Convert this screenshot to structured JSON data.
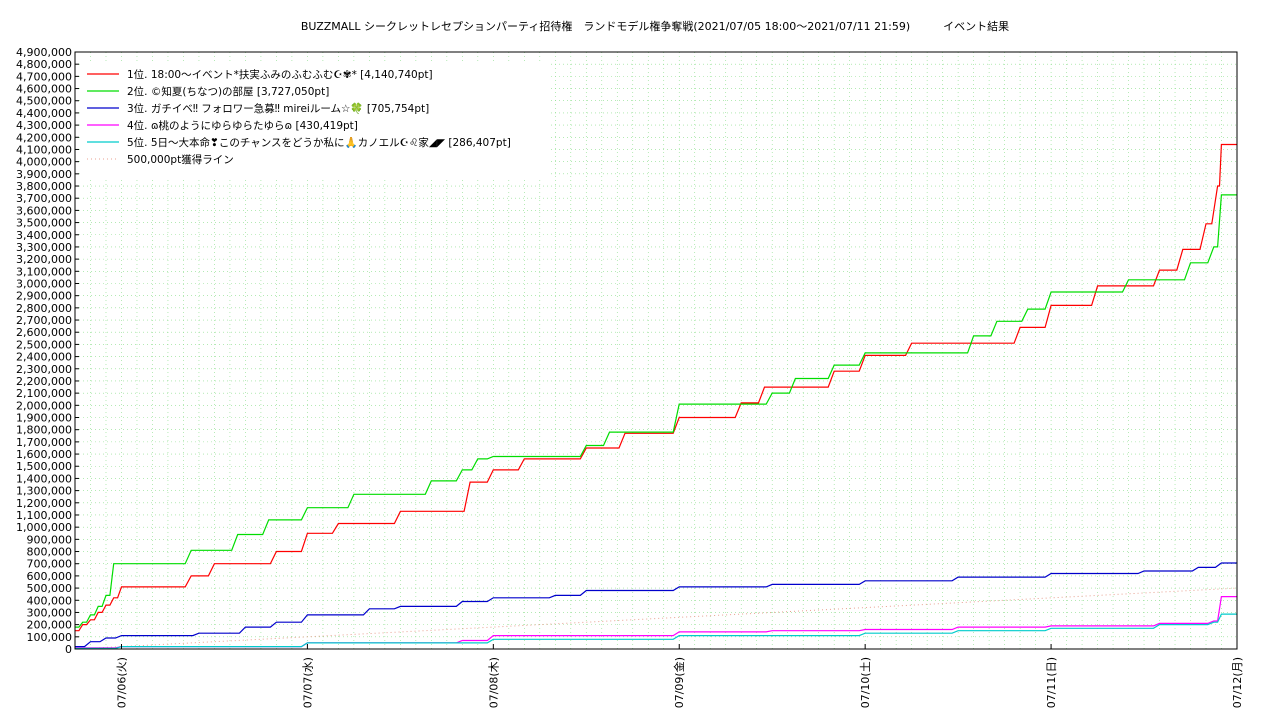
{
  "chart_data": {
    "type": "line",
    "title": "BUZZMALL シークレットレセプションパーティ招待権　ランドモデル権争奪戦(2021/07/05 18:00〜2021/07/11 21:59)　　　イベント結果",
    "xlabel": "",
    "ylabel": "",
    "x_range": [
      "2021/07/05 18:00",
      "2021/07/12 00:00"
    ],
    "ylim": [
      0,
      4900000
    ],
    "y_tick_step": 100000,
    "x_ticks": [
      {
        "label": "07/06(火)",
        "x": "2021/07/06 00:00"
      },
      {
        "label": "07/07(水)",
        "x": "2021/07/07 00:00"
      },
      {
        "label": "07/08(木)",
        "x": "2021/07/08 00:00"
      },
      {
        "label": "07/09(金)",
        "x": "2021/07/09 00:00"
      },
      {
        "label": "07/10(土)",
        "x": "2021/07/10 00:00"
      },
      {
        "label": "07/11(日)",
        "x": "2021/07/11 00:00"
      },
      {
        "label": "07/12(月)",
        "x": "2021/07/12 00:00"
      }
    ],
    "grid": true,
    "legend_position": "top-left",
    "series": [
      {
        "name": "1位. 18:00〜イベント*扶実ふみのふむふむ☪✾* [4,140,740pt]",
        "color": "#ff0000",
        "x": [
          "2021/07/05 18:00",
          "2021/07/05 19:00",
          "2021/07/05 20:00",
          "2021/07/05 21:00",
          "2021/07/05 22:00",
          "2021/07/05 23:00",
          "2021/07/06 00:00",
          "2021/07/06 09:00",
          "2021/07/06 12:00",
          "2021/07/06 20:00",
          "2021/07/07 00:00",
          "2021/07/07 04:00",
          "2021/07/07 12:00",
          "2021/07/07 21:00",
          "2021/07/08 00:00",
          "2021/07/08 04:00",
          "2021/07/08 12:00",
          "2021/07/08 17:00",
          "2021/07/09 00:00",
          "2021/07/09 08:00",
          "2021/07/09 11:00",
          "2021/07/09 20:00",
          "2021/07/10 00:00",
          "2021/07/10 06:00",
          "2021/07/10 20:00",
          "2021/07/11 00:00",
          "2021/07/11 06:00",
          "2021/07/11 14:00",
          "2021/07/11 17:00",
          "2021/07/11 20:00",
          "2021/07/11 21:30",
          "2021/07/11 21:59",
          "2021/07/12 00:00"
        ],
        "y": [
          150000,
          200000,
          240000,
          300000,
          360000,
          420000,
          510000,
          600000,
          700000,
          800000,
          950000,
          1030000,
          1130000,
          1370000,
          1470000,
          1560000,
          1650000,
          1770000,
          1900000,
          2020000,
          2150000,
          2280000,
          2410000,
          2510000,
          2640000,
          2820000,
          2980000,
          3110000,
          3280000,
          3490000,
          3800000,
          4140740,
          4140740
        ]
      },
      {
        "name": "2位. ©知夏(ちなつ)の部屋 [3,727,050pt]",
        "color": "#00dd00",
        "x": [
          "2021/07/05 18:00",
          "2021/07/05 19:00",
          "2021/07/05 20:00",
          "2021/07/05 21:00",
          "2021/07/05 22:00",
          "2021/07/05 23:00",
          "2021/07/06 09:00",
          "2021/07/06 15:00",
          "2021/07/06 19:00",
          "2021/07/07 00:00",
          "2021/07/07 06:00",
          "2021/07/07 16:00",
          "2021/07/07 20:00",
          "2021/07/07 22:00",
          "2021/07/08 00:00",
          "2021/07/08 12:00",
          "2021/07/08 15:00",
          "2021/07/09 00:00",
          "2021/07/09 12:00",
          "2021/07/09 15:00",
          "2021/07/09 20:00",
          "2021/07/10 00:00",
          "2021/07/10 14:00",
          "2021/07/10 17:00",
          "2021/07/10 21:00",
          "2021/07/11 00:00",
          "2021/07/11 10:00",
          "2021/07/11 18:00",
          "2021/07/11 21:00",
          "2021/07/11 21:59",
          "2021/07/12 00:00"
        ],
        "y": [
          180000,
          220000,
          280000,
          350000,
          440000,
          700000,
          810000,
          940000,
          1060000,
          1160000,
          1270000,
          1380000,
          1470000,
          1560000,
          1580000,
          1670000,
          1780000,
          2010000,
          2100000,
          2220000,
          2330000,
          2430000,
          2570000,
          2690000,
          2790000,
          2930000,
          3030000,
          3170000,
          3300000,
          3727050,
          3727050
        ]
      },
      {
        "name": "3位. ガチイベ‼ フォロワー急募‼ mireiルーム☆🍀 [705,754pt]",
        "color": "#0000cc",
        "x": [
          "2021/07/05 18:00",
          "2021/07/05 20:00",
          "2021/07/05 22:00",
          "2021/07/06 00:00",
          "2021/07/06 10:00",
          "2021/07/06 16:00",
          "2021/07/06 20:00",
          "2021/07/07 00:00",
          "2021/07/07 08:00",
          "2021/07/07 12:00",
          "2021/07/07 20:00",
          "2021/07/08 00:00",
          "2021/07/08 08:00",
          "2021/07/08 12:00",
          "2021/07/09 00:00",
          "2021/07/09 12:00",
          "2021/07/10 00:00",
          "2021/07/10 12:00",
          "2021/07/11 00:00",
          "2021/07/11 12:00",
          "2021/07/11 19:00",
          "2021/07/11 21:59",
          "2021/07/12 00:00"
        ],
        "y": [
          20000,
          60000,
          90000,
          110000,
          130000,
          180000,
          220000,
          280000,
          330000,
          350000,
          390000,
          420000,
          440000,
          480000,
          510000,
          530000,
          560000,
          590000,
          620000,
          640000,
          670000,
          705754,
          705754
        ]
      },
      {
        "name": "4位. ɷ桃のようにゆらゆらたゆらɷ [430,419pt]",
        "color": "#ff00ff",
        "x": [
          "2021/07/05 18:00",
          "2021/07/06 00:00",
          "2021/07/07 00:00",
          "2021/07/07 20:00",
          "2021/07/08 00:00",
          "2021/07/09 00:00",
          "2021/07/09 12:00",
          "2021/07/10 00:00",
          "2021/07/10 12:00",
          "2021/07/11 00:00",
          "2021/07/11 14:00",
          "2021/07/11 21:00",
          "2021/07/11 21:59",
          "2021/07/12 00:00"
        ],
        "y": [
          10000,
          20000,
          50000,
          70000,
          110000,
          140000,
          150000,
          160000,
          180000,
          190000,
          210000,
          230000,
          430419,
          430419
        ]
      },
      {
        "name": "5位. 5日〜大本命❣このチャンスをどうか私に🙏カノエル☪♌家◢◤ [286,407pt]",
        "color": "#00cccc",
        "x": [
          "2021/07/05 18:00",
          "2021/07/06 00:00",
          "2021/07/07 00:00",
          "2021/07/08 00:00",
          "2021/07/09 00:00",
          "2021/07/10 00:00",
          "2021/07/10 12:00",
          "2021/07/11 00:00",
          "2021/07/11 14:00",
          "2021/07/11 21:00",
          "2021/07/11 21:59",
          "2021/07/12 00:00"
        ],
        "y": [
          5000,
          20000,
          50000,
          80000,
          110000,
          130000,
          150000,
          170000,
          200000,
          220000,
          286407,
          286407
        ]
      },
      {
        "name": "500,000pt獲得ライン",
        "color": "#e8a090",
        "style": "dotted",
        "x": [
          "2021/07/05 18:00",
          "2021/07/12 00:00"
        ],
        "y": [
          0,
          500000
        ]
      }
    ]
  }
}
